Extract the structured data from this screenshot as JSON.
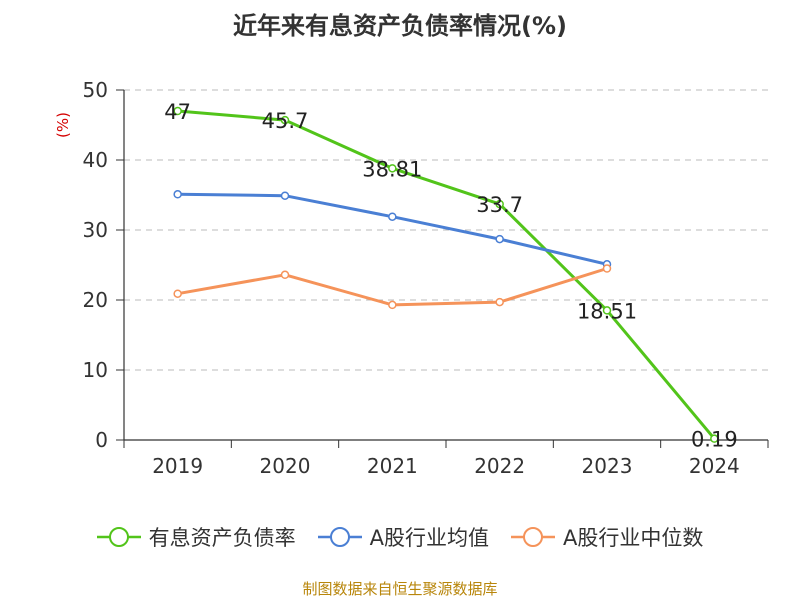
{
  "title": "近年来有息资产负债率情况(%)",
  "source": "制图数据来自恒生聚源数据库",
  "chart_data": {
    "type": "line",
    "categories": [
      "2019",
      "2020",
      "2021",
      "2022",
      "2023",
      "2024"
    ],
    "ylabel": "(%)",
    "ylim": [
      0,
      50
    ],
    "yticks": [
      0,
      10,
      20,
      30,
      40,
      50
    ],
    "grid": true,
    "legend_position": "bottom",
    "series": [
      {
        "name": "有息资产负债率",
        "color": "#52c41a",
        "values": [
          47,
          45.7,
          38.81,
          33.7,
          18.51,
          0.19
        ],
        "labels": [
          "47",
          "45.7",
          "38.81",
          "33.7",
          "18.51",
          "0.19"
        ]
      },
      {
        "name": "A股行业均值",
        "color": "#4a7fd4",
        "values": [
          35.1,
          34.9,
          31.9,
          28.7,
          25.1,
          null
        ]
      },
      {
        "name": "A股行业中位数",
        "color": "#f5935a",
        "values": [
          20.9,
          23.6,
          19.3,
          19.7,
          24.5,
          null
        ]
      }
    ]
  }
}
